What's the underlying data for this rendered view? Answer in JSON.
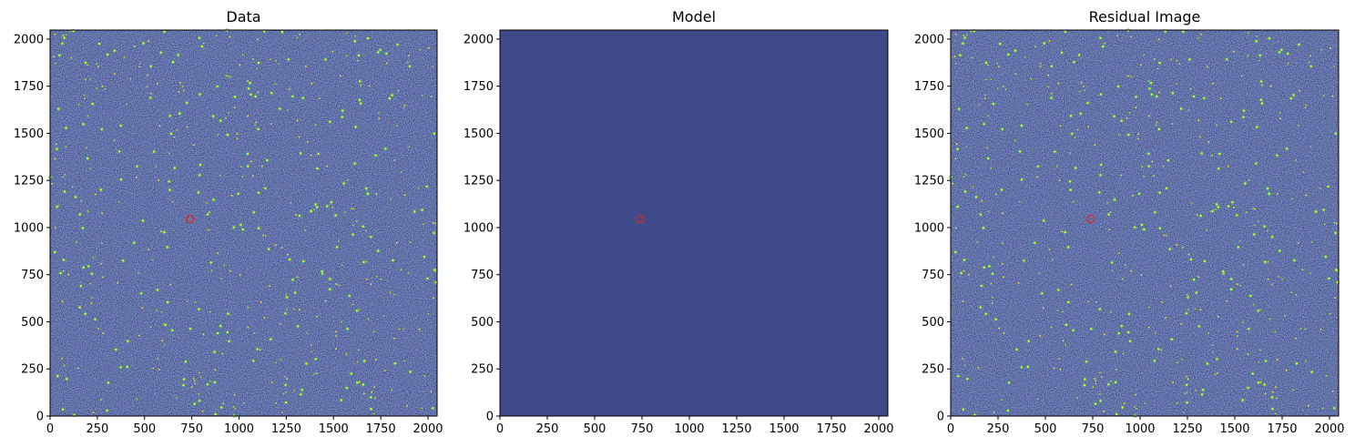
{
  "chart_data": [
    {
      "type": "heatmap",
      "title": "Data",
      "xlabel": "",
      "ylabel": "",
      "xlim": [
        0,
        2048
      ],
      "ylim": [
        0,
        2048
      ],
      "xticks": [
        0,
        250,
        500,
        750,
        1000,
        1250,
        1500,
        1750,
        2000
      ],
      "yticks": [
        0,
        250,
        500,
        750,
        1000,
        1250,
        1500,
        1750,
        2000
      ],
      "colormap": "viridis",
      "background": "#3b4a8a",
      "content": "star field (noise + point sources)",
      "marker": {
        "x": 740,
        "y": 1045,
        "color": "#d62728",
        "shape": "circle"
      }
    },
    {
      "type": "heatmap",
      "title": "Model",
      "xlabel": "",
      "ylabel": "",
      "xlim": [
        0,
        2048
      ],
      "ylim": [
        0,
        2048
      ],
      "xticks": [
        0,
        250,
        500,
        750,
        1000,
        1250,
        1500,
        1750,
        2000
      ],
      "yticks": [
        0,
        250,
        500,
        750,
        1000,
        1250,
        1500,
        1750,
        2000
      ],
      "colormap": "viridis",
      "background": "#3f4a88",
      "content": "uniform",
      "marker": {
        "x": 740,
        "y": 1045,
        "color": "#d62728",
        "shape": "circle"
      }
    },
    {
      "type": "heatmap",
      "title": "Residual Image",
      "xlabel": "",
      "ylabel": "",
      "xlim": [
        0,
        2048
      ],
      "ylim": [
        0,
        2048
      ],
      "xticks": [
        0,
        250,
        500,
        750,
        1000,
        1250,
        1500,
        1750,
        2000
      ],
      "yticks": [
        0,
        250,
        500,
        750,
        1000,
        1250,
        1500,
        1750,
        2000
      ],
      "colormap": "viridis",
      "background": "#3b4a8a",
      "content": "star field (noise + point sources)",
      "marker": {
        "x": 740,
        "y": 1045,
        "color": "#d62728",
        "shape": "circle"
      }
    }
  ]
}
